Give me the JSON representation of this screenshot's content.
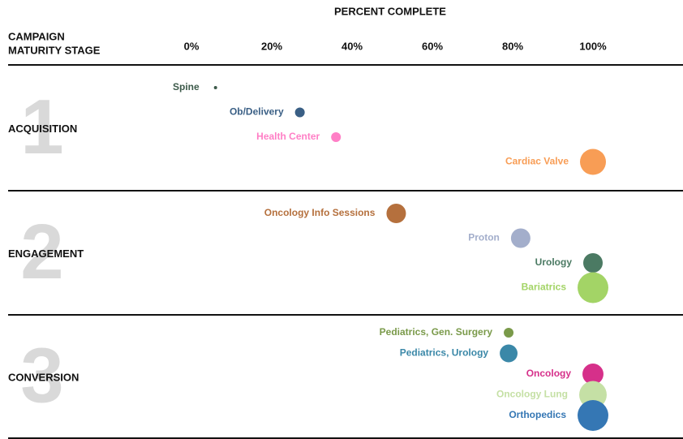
{
  "chart_data": {
    "type": "bubble",
    "title": "PERCENT COMPLETE",
    "y_label": [
      "CAMPAIGN",
      "MATURITY STAGE"
    ],
    "xlim": [
      0,
      100
    ],
    "xticks": [
      {
        "value": 0,
        "label": "0%"
      },
      {
        "value": 20,
        "label": "20%"
      },
      {
        "value": 40,
        "label": "40%"
      },
      {
        "value": 60,
        "label": "60%"
      },
      {
        "value": 80,
        "label": "80%"
      },
      {
        "value": 100,
        "label": "100%"
      }
    ],
    "stages": [
      {
        "number": "1",
        "name": "ACQUISITION",
        "series": [
          {
            "name": "Spine",
            "color": "#3d5a4a",
            "x": 6,
            "size": 1
          },
          {
            "name": "Ob/Delivery",
            "color": "#3a5f85",
            "x": 27,
            "size": 9
          },
          {
            "name": "Health Center",
            "color": "#ff7fc6",
            "x": 36,
            "size": 9
          },
          {
            "name": "Cardiac Valve",
            "color": "#f89d55",
            "x": 100,
            "size": 64
          }
        ]
      },
      {
        "number": "2",
        "name": "ENGAGEMENT",
        "series": [
          {
            "name": "Oncology Info Sessions",
            "color": "#b5703d",
            "x": 51,
            "size": 36
          },
          {
            "name": "Proton",
            "color": "#a3aecb",
            "x": 82,
            "size": 36
          },
          {
            "name": "Urology",
            "color": "#4b7a63",
            "x": 100,
            "size": 36
          },
          {
            "name": "Bariatrics",
            "color": "#a3d466",
            "x": 100,
            "size": 90
          }
        ]
      },
      {
        "number": "3",
        "name": "CONVERSION",
        "series": [
          {
            "name": "Pediatrics, Gen. Surgery",
            "color": "#7a9a4a",
            "x": 79,
            "size": 9
          },
          {
            "name": "Pediatrics, Urology",
            "color": "#3b88a8",
            "x": 79,
            "size": 30
          },
          {
            "name": "Oncology",
            "color": "#d6308a",
            "x": 100,
            "size": 42
          },
          {
            "name": "Oncology Lung",
            "color": "#c5e0a5",
            "x": 100,
            "size": 72
          },
          {
            "name": "Orthopedics",
            "color": "#3577b4",
            "x": 100,
            "size": 90
          }
        ]
      }
    ]
  }
}
